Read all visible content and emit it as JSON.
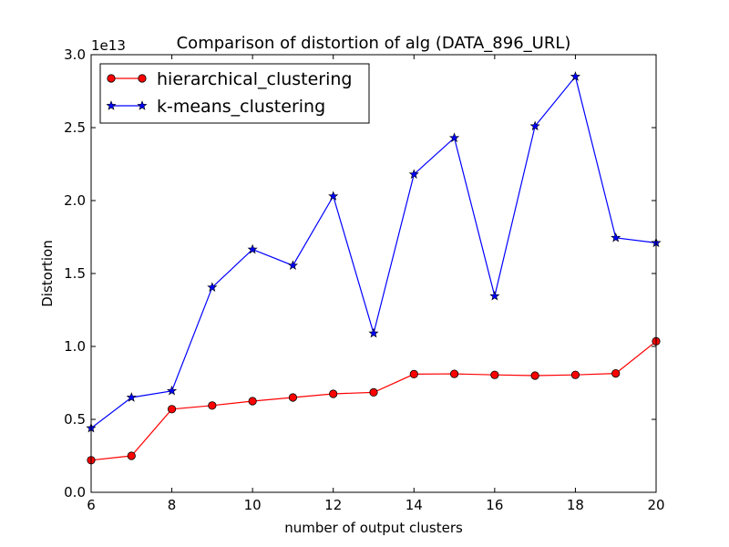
{
  "chart_data": {
    "type": "line",
    "title": "Comparison of distortion of alg (DATA_896_URL)",
    "xlabel": "number of output clusters",
    "ylabel": "Distortion",
    "y_offset_label": "1e13",
    "xlim": [
      6,
      20
    ],
    "ylim": [
      0.0,
      3.0
    ],
    "x_ticks": [
      6,
      8,
      10,
      12,
      14,
      16,
      18,
      20
    ],
    "y_ticks": [
      0.0,
      0.5,
      1.0,
      1.5,
      2.0,
      2.5,
      3.0
    ],
    "y_tick_labels": [
      "0.0",
      "0.5",
      "1.0",
      "1.5",
      "2.0",
      "2.5",
      "3.0"
    ],
    "grid": false,
    "legend_position": "top-left",
    "x": [
      6,
      7,
      8,
      9,
      10,
      11,
      12,
      13,
      14,
      15,
      16,
      17,
      18,
      19,
      20
    ],
    "series": [
      {
        "name": "hierarchical_clustering",
        "color": "#ff0000",
        "line_color": "#ff0000",
        "marker": "circle",
        "values": [
          0.22,
          0.25,
          0.57,
          0.595,
          0.625,
          0.65,
          0.675,
          0.685,
          0.81,
          0.812,
          0.805,
          0.8,
          0.805,
          0.815,
          1.035
        ]
      },
      {
        "name": "k-means_clustering",
        "color": "#0000ff",
        "line_color": "#0000ff",
        "marker": "star",
        "values": [
          0.44,
          0.65,
          0.695,
          1.405,
          1.665,
          1.555,
          2.03,
          1.09,
          2.18,
          2.43,
          1.345,
          2.51,
          2.85,
          1.745,
          1.71
        ]
      }
    ]
  }
}
